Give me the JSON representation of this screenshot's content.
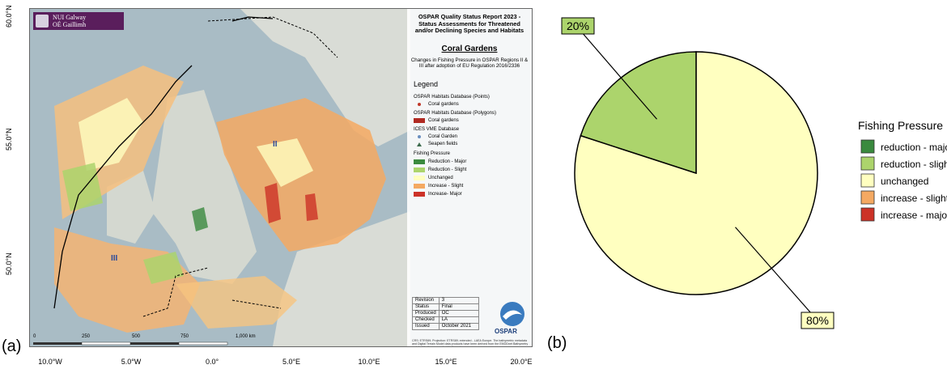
{
  "panel_labels": {
    "a": "(a)",
    "b": "(b)"
  },
  "map": {
    "logo_line1": "NUI Galway",
    "logo_line2": "OÉ Gaillimh",
    "title": "OSPAR Quality Status Report 2023 - Status Assessments for Threatened and/or Declining Species and Habitats",
    "habitat": "Coral Gardens",
    "subtitle": "Changes in Fishing Pressure in OSPAR Regions II & III after adoption of EU Regulation 2016/2336",
    "legend_heading": "Legend",
    "sections": {
      "points": "OSPAR Habitats Database (Points)",
      "points_item": "Coral gardens",
      "polygons": "OSPAR Habitats Database (Polygons)",
      "polygons_item": "Coral gardens",
      "ices": "ICES VME Database",
      "ices_item1": "Coral Garden",
      "ices_item2": "Seapen fields",
      "fishing": "Fishing Pressure",
      "fp1": "Reduction - Major",
      "fp2": "Reduction - Slight",
      "fp3": "Unchanged",
      "fp4": "Increase - Slight",
      "fp5": "Increase- Major"
    },
    "revision_table": [
      [
        "Revision",
        "3"
      ],
      [
        "Status",
        "Final"
      ],
      [
        "Produced",
        "OC"
      ],
      [
        "Checked",
        "LA"
      ],
      [
        "Issued",
        "October 2021"
      ]
    ],
    "ospar_logo_text": "OSPAR",
    "credits": "CRS: ETRS89; Projection: ETRS89; extended - LAEA Europe. The bathymetric metadata and Digital Terrain Model data products have been derived from the EMODnet Bathymetry portal - http://www.emodnet-bathymetry.eu",
    "region_labels": {
      "ii": "II",
      "iii": "III"
    },
    "lat_labels": [
      "60.0°N",
      "55.0°N",
      "50.0°N"
    ],
    "lon_labels": [
      "10.0°W",
      "5.0°W",
      "0.0°",
      "5.0°E",
      "10.0°E",
      "15.0°E",
      "20.0°E"
    ],
    "scale_labels": [
      "0",
      "250",
      "500",
      "750",
      "1,000 km"
    ]
  },
  "colors": {
    "reduction_major": "#3a8a3e",
    "reduction_slight": "#acd46c",
    "unchanged": "#ffffc0",
    "increase_slight": "#f4a962",
    "increase_major": "#cc3227"
  },
  "chart_data": {
    "type": "pie",
    "title": "",
    "legend_title": "Fishing Pressure",
    "legend_position": "right",
    "categories": [
      "reduction - major",
      "reduction - slight",
      "unchanged",
      "increase - slight",
      "increase - major"
    ],
    "values": [
      0,
      20,
      80,
      0,
      0
    ],
    "data_labels": [
      "",
      "20%",
      "80%",
      "",
      ""
    ],
    "colors": [
      "#3a8a3e",
      "#acd46c",
      "#ffffc0",
      "#f4a962",
      "#cc3227"
    ]
  }
}
